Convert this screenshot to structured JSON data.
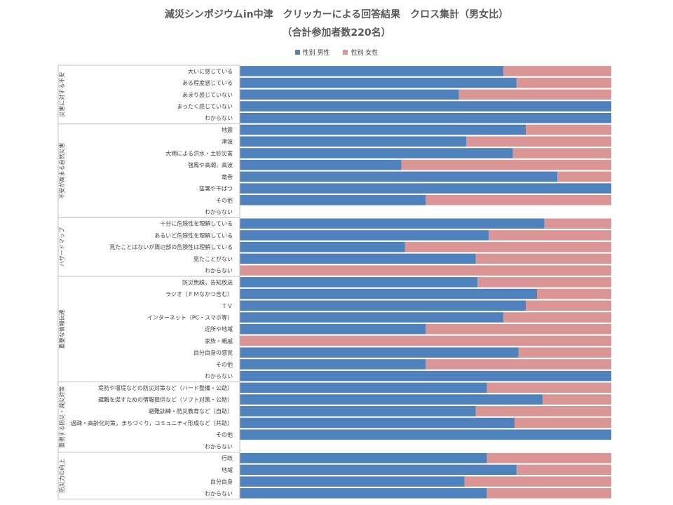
{
  "title": {
    "line1": "減災シンポジウムin中津　クリッカーによる回答結果　クロス集計（男女比）",
    "line2": "（合計参加者数220名）"
  },
  "colors": {
    "male": "#4F81BD",
    "female": "#D99694",
    "axis": "#BFBFBF"
  },
  "chart_data": {
    "type": "bar",
    "orientation": "horizontal",
    "stacked": "100%",
    "title": "減災シンポジウムin中津　クリッカーによる回答結果　クロス集計（男女比）（合計参加者数220名）",
    "legend_position": "top",
    "xlim": [
      0,
      1
    ],
    "grid": false,
    "series": [
      {
        "name": "性別 男性",
        "color": "#4F81BD"
      },
      {
        "name": "性別 女性",
        "color": "#D99694"
      }
    ],
    "groups": [
      {
        "label": "災害に対する不安",
        "items": [
          {
            "label": "大いに感じている",
            "male": 0.71,
            "female": 0.29
          },
          {
            "label": "ある程度感じている",
            "male": 0.745,
            "female": 0.255
          },
          {
            "label": "あまり感じていない",
            "male": 0.59,
            "female": 0.41
          },
          {
            "label": "まったく感じていない",
            "male": 1.0,
            "female": 0.0
          },
          {
            "label": "わからない",
            "male": 1.0,
            "female": 0.0
          }
        ]
      },
      {
        "label": "不安が高まる自然災害",
        "items": [
          {
            "label": "地震",
            "male": 0.77,
            "female": 0.23
          },
          {
            "label": "津波",
            "male": 0.61,
            "female": 0.39
          },
          {
            "label": "大雨による洪水・土砂災害",
            "male": 0.735,
            "female": 0.265
          },
          {
            "label": "強風や高潮，高波",
            "male": 0.435,
            "female": 0.565
          },
          {
            "label": "竜巻",
            "male": 0.855,
            "female": 0.145
          },
          {
            "label": "猛暑や干ばつ",
            "male": 1.0,
            "female": 0.0
          },
          {
            "label": "その他",
            "male": 0.5,
            "female": 0.5
          },
          {
            "label": "わからない",
            "male": 0.0,
            "female": 0.0
          }
        ]
      },
      {
        "label": "ハザードマップ",
        "items": [
          {
            "label": "十分に危険性を理解している",
            "male": 0.82,
            "female": 0.18
          },
          {
            "label": "あるいど危険性を理解している",
            "male": 0.67,
            "female": 0.33
          },
          {
            "label": "見たことはないが周辺部の危険性は理解している",
            "male": 0.445,
            "female": 0.555
          },
          {
            "label": "見たことがない",
            "male": 0.635,
            "female": 0.365
          },
          {
            "label": "わからない",
            "male": 0.0,
            "female": 1.0
          }
        ]
      },
      {
        "label": "重要な情報伝達",
        "items": [
          {
            "label": "防災無線，告知放送",
            "male": 0.64,
            "female": 0.36
          },
          {
            "label": "ラジオ（ＦＭなかつ含む）",
            "male": 0.8,
            "female": 0.2
          },
          {
            "label": "ＴＶ",
            "male": 0.77,
            "female": 0.23
          },
          {
            "label": "インターネット（PC・スマホ等）",
            "male": 0.71,
            "female": 0.29
          },
          {
            "label": "近所や地域",
            "male": 0.5,
            "female": 0.5
          },
          {
            "label": "家族・親戚",
            "male": 0.0,
            "female": 1.0
          },
          {
            "label": "自分自身の感覚",
            "male": 0.75,
            "female": 0.25
          },
          {
            "label": "その他",
            "male": 0.5,
            "female": 0.5
          },
          {
            "label": "わからない",
            "male": 1.0,
            "female": 0.0
          }
        ]
      },
      {
        "label": "重視する防災・減災対策",
        "items": [
          {
            "label": "堤防や堰堤などの防災対策など（ハード整備・公助）",
            "male": 0.665,
            "female": 0.335
          },
          {
            "label": "避難を促すための情報提供など（ソフト対策・公助）",
            "male": 0.815,
            "female": 0.185
          },
          {
            "label": "避難訓練・防災教育など（自助）",
            "male": 0.635,
            "female": 0.365
          },
          {
            "label": "過疎・高齢化対策，まちづくり，コミュニティ形成など（共助）",
            "male": 0.74,
            "female": 0.26
          },
          {
            "label": "その他",
            "male": 1.0,
            "female": 0.0
          },
          {
            "label": "わからない",
            "male": 0.0,
            "female": 0.0
          }
        ]
      },
      {
        "label": "防災力の向上",
        "items": [
          {
            "label": "行政",
            "male": 0.665,
            "female": 0.335
          },
          {
            "label": "地域",
            "male": 0.745,
            "female": 0.255
          },
          {
            "label": "自分自身",
            "male": 0.605,
            "female": 0.395
          },
          {
            "label": "わからない",
            "male": 0.665,
            "female": 0.335
          }
        ]
      }
    ]
  }
}
